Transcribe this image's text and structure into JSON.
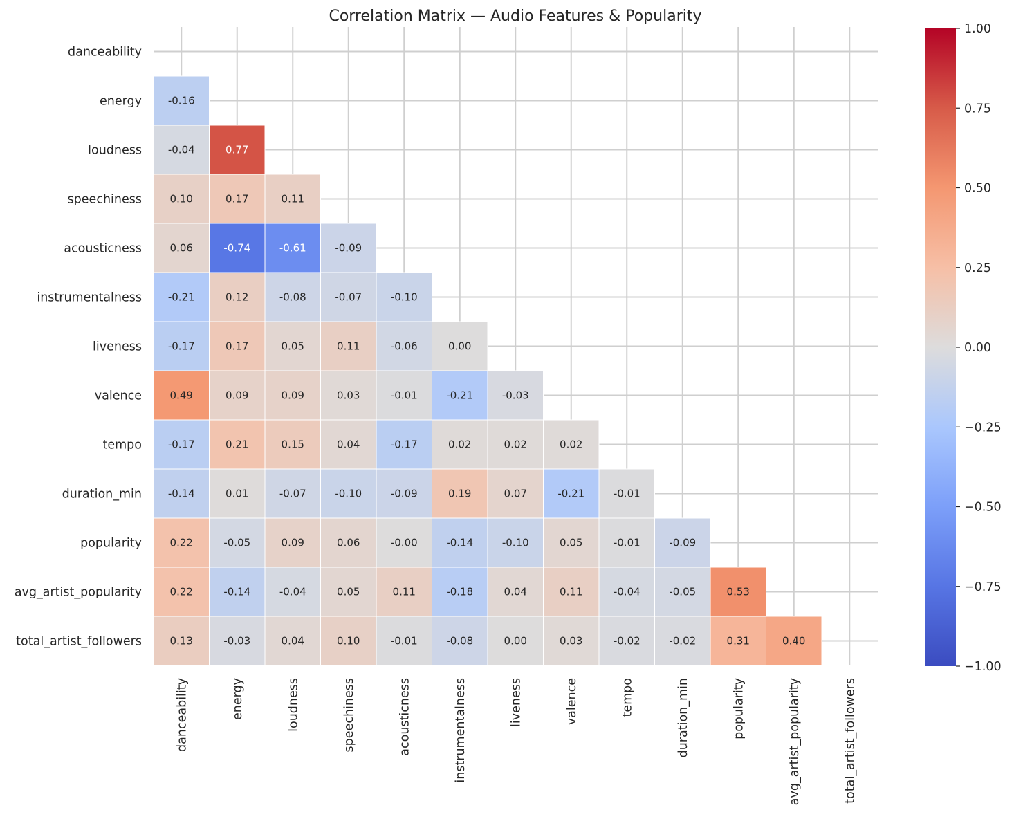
{
  "chart_data": {
    "type": "heatmap",
    "title": "Correlation Matrix — Audio Features & Popularity",
    "labels": [
      "danceability",
      "energy",
      "loudness",
      "speechiness",
      "acousticness",
      "instrumentalness",
      "liveness",
      "valence",
      "tempo",
      "duration_min",
      "popularity",
      "avg_artist_popularity",
      "total_artist_followers"
    ],
    "mask": "upper-triangle-and-diagonal",
    "values": [
      [],
      [
        -0.16
      ],
      [
        -0.04,
        0.77
      ],
      [
        0.1,
        0.17,
        0.11
      ],
      [
        0.06,
        -0.74,
        -0.61,
        -0.09
      ],
      [
        -0.21,
        0.12,
        -0.08,
        -0.07,
        -0.1
      ],
      [
        -0.17,
        0.17,
        0.05,
        0.11,
        -0.06,
        0.0
      ],
      [
        0.49,
        0.09,
        0.09,
        0.03,
        -0.01,
        -0.21,
        -0.03
      ],
      [
        -0.17,
        0.21,
        0.15,
        0.04,
        -0.17,
        0.02,
        0.02,
        0.02
      ],
      [
        -0.14,
        0.01,
        -0.07,
        -0.1,
        -0.09,
        0.19,
        0.07,
        -0.21,
        -0.01
      ],
      [
        0.22,
        -0.05,
        0.09,
        0.06,
        -0.0,
        -0.14,
        -0.1,
        0.05,
        -0.01,
        -0.09
      ],
      [
        0.22,
        -0.14,
        -0.04,
        0.05,
        0.11,
        -0.18,
        0.04,
        0.11,
        -0.04,
        -0.05,
        0.53
      ],
      [
        0.13,
        -0.03,
        0.04,
        0.1,
        -0.01,
        -0.08,
        0.0,
        0.03,
        -0.02,
        -0.02,
        0.31,
        0.4
      ]
    ],
    "value_labels": [
      [],
      [
        "-0.16"
      ],
      [
        "-0.04",
        "0.77"
      ],
      [
        "0.10",
        "0.17",
        "0.11"
      ],
      [
        "0.06",
        "-0.74",
        "-0.61",
        "-0.09"
      ],
      [
        "-0.21",
        "0.12",
        "-0.08",
        "-0.07",
        "-0.10"
      ],
      [
        "-0.17",
        "0.17",
        "0.05",
        "0.11",
        "-0.06",
        "0.00"
      ],
      [
        "0.49",
        "0.09",
        "0.09",
        "0.03",
        "-0.01",
        "-0.21",
        "-0.03"
      ],
      [
        "-0.17",
        "0.21",
        "0.15",
        "0.04",
        "-0.17",
        "0.02",
        "0.02",
        "0.02"
      ],
      [
        "-0.14",
        "0.01",
        "-0.07",
        "-0.10",
        "-0.09",
        "0.19",
        "0.07",
        "-0.21",
        "-0.01"
      ],
      [
        "0.22",
        "-0.05",
        "0.09",
        "0.06",
        "-0.00",
        "-0.14",
        "-0.10",
        "0.05",
        "-0.01",
        "-0.09"
      ],
      [
        "0.22",
        "-0.14",
        "-0.04",
        "0.05",
        "0.11",
        "-0.18",
        "0.04",
        "0.11",
        "-0.04",
        "-0.05",
        "0.53"
      ],
      [
        "0.13",
        "-0.03",
        "0.04",
        "0.10",
        "-0.01",
        "-0.08",
        "0.00",
        "0.03",
        "-0.02",
        "-0.02",
        "0.31",
        "0.40"
      ]
    ],
    "colorbar": {
      "colormap": "coolwarm",
      "vmin": -1.0,
      "vmax": 1.0,
      "ticks": [
        1.0,
        0.75,
        0.5,
        0.25,
        0.0,
        -0.25,
        -0.5,
        -0.75,
        -1.0
      ],
      "tick_labels": [
        "1.00",
        "0.75",
        "0.50",
        "0.25",
        "0.00",
        "−0.25",
        "−0.50",
        "−0.75",
        "−1.00"
      ]
    },
    "grid": true,
    "xlabel": "",
    "ylabel": ""
  }
}
